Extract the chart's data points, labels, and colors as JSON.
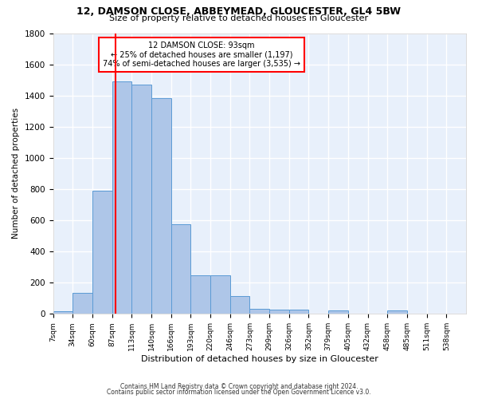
{
  "title": "12, DAMSON CLOSE, ABBEYMEAD, GLOUCESTER, GL4 5BW",
  "subtitle": "Size of property relative to detached houses in Gloucester",
  "xlabel": "Distribution of detached houses by size in Gloucester",
  "ylabel": "Number of detached properties",
  "bar_labels": [
    "7sqm",
    "34sqm",
    "60sqm",
    "87sqm",
    "113sqm",
    "140sqm",
    "166sqm",
    "193sqm",
    "220sqm",
    "246sqm",
    "273sqm",
    "299sqm",
    "326sqm",
    "352sqm",
    "379sqm",
    "405sqm",
    "432sqm",
    "458sqm",
    "485sqm",
    "511sqm",
    "538sqm"
  ],
  "bar_values": [
    15,
    135,
    790,
    1490,
    1470,
    1385,
    575,
    245,
    245,
    115,
    35,
    25,
    25,
    0,
    20,
    0,
    0,
    20,
    0,
    0,
    0
  ],
  "bar_color": "#aec6e8",
  "bar_edge_color": "#5b9bd5",
  "vline_x": 93,
  "vline_color": "red",
  "annotation_line1": "12 DAMSON CLOSE: 93sqm",
  "annotation_line2": "← 25% of detached houses are smaller (1,197)",
  "annotation_line3": "74% of semi-detached houses are larger (3,535) →",
  "annotation_box_color": "red",
  "ylim": [
    0,
    1800
  ],
  "yticks": [
    0,
    200,
    400,
    600,
    800,
    1000,
    1200,
    1400,
    1600,
    1800
  ],
  "footer_line1": "Contains HM Land Registry data © Crown copyright and database right 2024.",
  "footer_line2": "Contains public sector information licensed under the Open Government Licence v3.0.",
  "bg_color": "#e8f0fb",
  "grid_color": "white",
  "bin_width": 27
}
